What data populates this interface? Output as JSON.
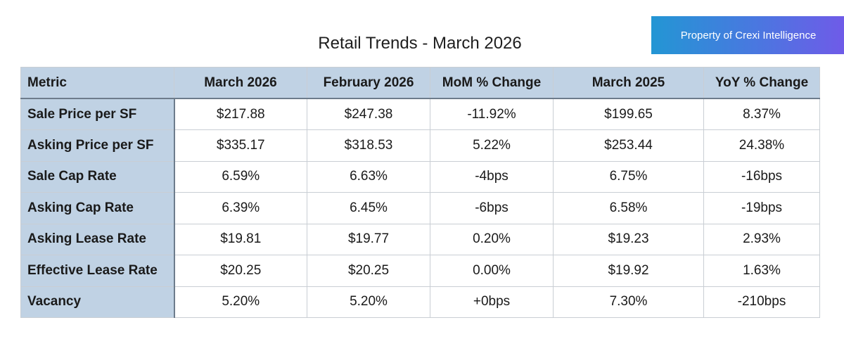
{
  "title": "Retail Trends - March 2026",
  "badge": "Property of Crexi Intelligence",
  "table": {
    "headers": [
      "Metric",
      "March 2026",
      "February 2026",
      "MoM % Change",
      "March 2025",
      "YoY % Change"
    ],
    "rows": [
      [
        "Sale Price per SF",
        "$217.88",
        "$247.38",
        "-11.92%",
        "$199.65",
        "8.37%"
      ],
      [
        "Asking Price per SF",
        "$335.17",
        "$318.53",
        "5.22%",
        "$253.44",
        "24.38%"
      ],
      [
        "Sale Cap Rate",
        "6.59%",
        "6.63%",
        "-4bps",
        "6.75%",
        "-16bps"
      ],
      [
        "Asking Cap Rate",
        "6.39%",
        "6.45%",
        "-6bps",
        "6.58%",
        "-19bps"
      ],
      [
        "Asking Lease Rate",
        "$19.81",
        "$19.77",
        "0.20%",
        "$19.23",
        "2.93%"
      ],
      [
        "Effective Lease Rate",
        "$20.25",
        "$20.25",
        "0.00%",
        "$19.92",
        "1.63%"
      ],
      [
        "Vacancy",
        "5.20%",
        "5.20%",
        "+0bps",
        "7.30%",
        "-210bps"
      ]
    ]
  }
}
